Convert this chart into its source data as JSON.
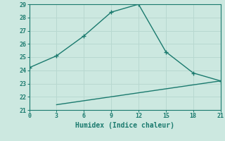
{
  "line1_x": [
    0,
    3,
    6,
    9,
    12,
    15,
    18,
    21
  ],
  "line1_y": [
    24.2,
    25.1,
    26.6,
    28.4,
    29.0,
    25.4,
    23.8,
    23.2
  ],
  "line2_x": [
    3,
    21
  ],
  "line2_y": [
    21.4,
    23.2
  ],
  "color": "#1a7a6e",
  "xlabel": "Humidex (Indice chaleur)",
  "xlim": [
    0,
    21
  ],
  "ylim": [
    21,
    29
  ],
  "xticks": [
    0,
    3,
    6,
    9,
    12,
    15,
    18,
    21
  ],
  "yticks": [
    21,
    22,
    23,
    24,
    25,
    26,
    27,
    28,
    29
  ],
  "bg_color": "#cce8e0",
  "grid_color": "#b8d8d0",
  "marker": "+",
  "markersize": 5,
  "linewidth": 1.0
}
